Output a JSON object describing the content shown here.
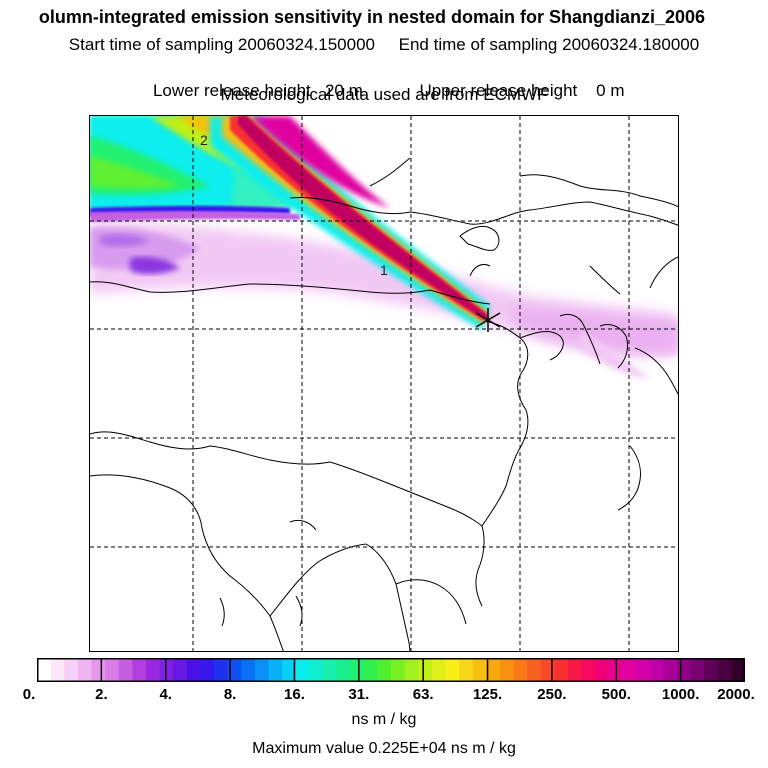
{
  "header": {
    "title": "olumn-integrated emission sensitivity in nested domain for Shangdianzi_2006",
    "start_label": "Start time of sampling 20060324.150000",
    "end_label": "End time of sampling 20060324.180000",
    "lower_label": "Lower release height   20 m",
    "upper_label": "Upper release height    0 m",
    "met_label": "Meteorological data used are from ECMWF"
  },
  "map": {
    "contour_labels": [
      "2",
      "1"
    ],
    "receptor_marker": "star"
  },
  "colorbar": {
    "tick_labels": [
      "0.",
      "2.",
      "4.",
      "8.",
      "16.",
      "31.",
      "63.",
      "125.",
      "250.",
      "500.",
      "1000.",
      "2000."
    ],
    "colors": [
      "#ffffff",
      "#fbe8fb",
      "#f6d0f6",
      "#f0b4f0",
      "#e698ee",
      "#d87ce8",
      "#c65ee2",
      "#b23ee0",
      "#9a28e0",
      "#8020e2",
      "#6618e4",
      "#4a10e4",
      "#3418ec",
      "#2030f0",
      "#1050f2",
      "#0870f4",
      "#0890f6",
      "#08b0f6",
      "#08d0f4",
      "#08eeee",
      "#10f0d0",
      "#18f0b0",
      "#18f090",
      "#20f070",
      "#30f050",
      "#50f030",
      "#78f020",
      "#a0f020",
      "#c0f018",
      "#e0f018",
      "#f8f018",
      "#f8d818",
      "#f8c010",
      "#f8a810",
      "#f89010",
      "#f87818",
      "#f86020",
      "#f84828",
      "#f83030",
      "#f81848",
      "#f80860",
      "#f00078",
      "#e80090",
      "#e000a0",
      "#d400a8",
      "#c000a8",
      "#a80098",
      "#900088",
      "#780070",
      "#600058",
      "#480040",
      "#300028"
    ],
    "unit": "ns m / kg",
    "max_value_text": "Maximum value  0.225E+04 ns m / kg"
  }
}
